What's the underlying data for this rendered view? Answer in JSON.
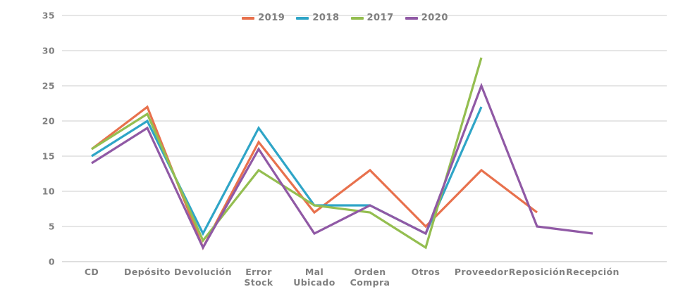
{
  "chart_data": {
    "type": "line",
    "title": "",
    "categories": [
      "CD",
      "Depósito",
      "Devolución",
      "Error Stock",
      "Mal Ubicado",
      "Orden Compra",
      "Otros",
      "Proveedor",
      "Reposición",
      "Recepción"
    ],
    "series": [
      {
        "name": "2019",
        "color": "#E8714D",
        "values": [
          16,
          22,
          2,
          17,
          7,
          13,
          5,
          13,
          7,
          null
        ]
      },
      {
        "name": "2018",
        "color": "#2FA5C7",
        "values": [
          15,
          20,
          4,
          19,
          8,
          8,
          4,
          22,
          null,
          null
        ]
      },
      {
        "name": "2017",
        "color": "#94BE50",
        "values": [
          16,
          21,
          3,
          13,
          8,
          7,
          2,
          29,
          null,
          null
        ]
      },
      {
        "name": "2020",
        "color": "#9059A5",
        "values": [
          14,
          19,
          2,
          16,
          4,
          8,
          4,
          25,
          5,
          4
        ]
      }
    ],
    "y_axis": {
      "min": 0,
      "max": 35,
      "step": 5,
      "tick_labels": [
        "0",
        "5",
        "10",
        "15",
        "20",
        "25",
        "30",
        "35"
      ]
    },
    "grid": true,
    "legend_position": "top-center",
    "colors": {
      "grid_line": "#D8D8D8",
      "zero_line": "#C9C9C9",
      "axis_text": "#808080",
      "background": "#FFFFFF"
    }
  }
}
